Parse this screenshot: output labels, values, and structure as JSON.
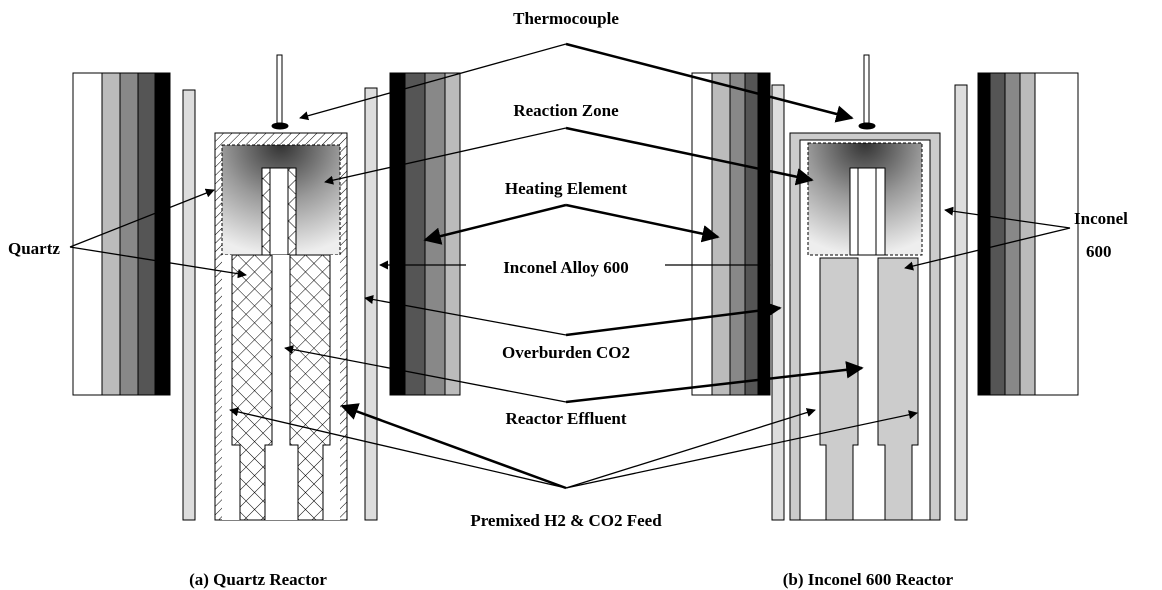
{
  "labels": {
    "thermocouple": "Thermocouple",
    "reaction_zone": "Reaction Zone",
    "heating_element": "Heating Element",
    "inconel_alloy": "Inconel Alloy 600",
    "overburden": "Overburden CO2",
    "effluent": "Reactor Effluent",
    "feed": "Premixed H2 & CO2 Feed",
    "quartz": "Quartz",
    "inconel_line1": "Inconel",
    "inconel_line2": "600"
  },
  "captions": [
    "(a) Quartz Reactor",
    "(b) Inconel 600 Reactor"
  ]
}
